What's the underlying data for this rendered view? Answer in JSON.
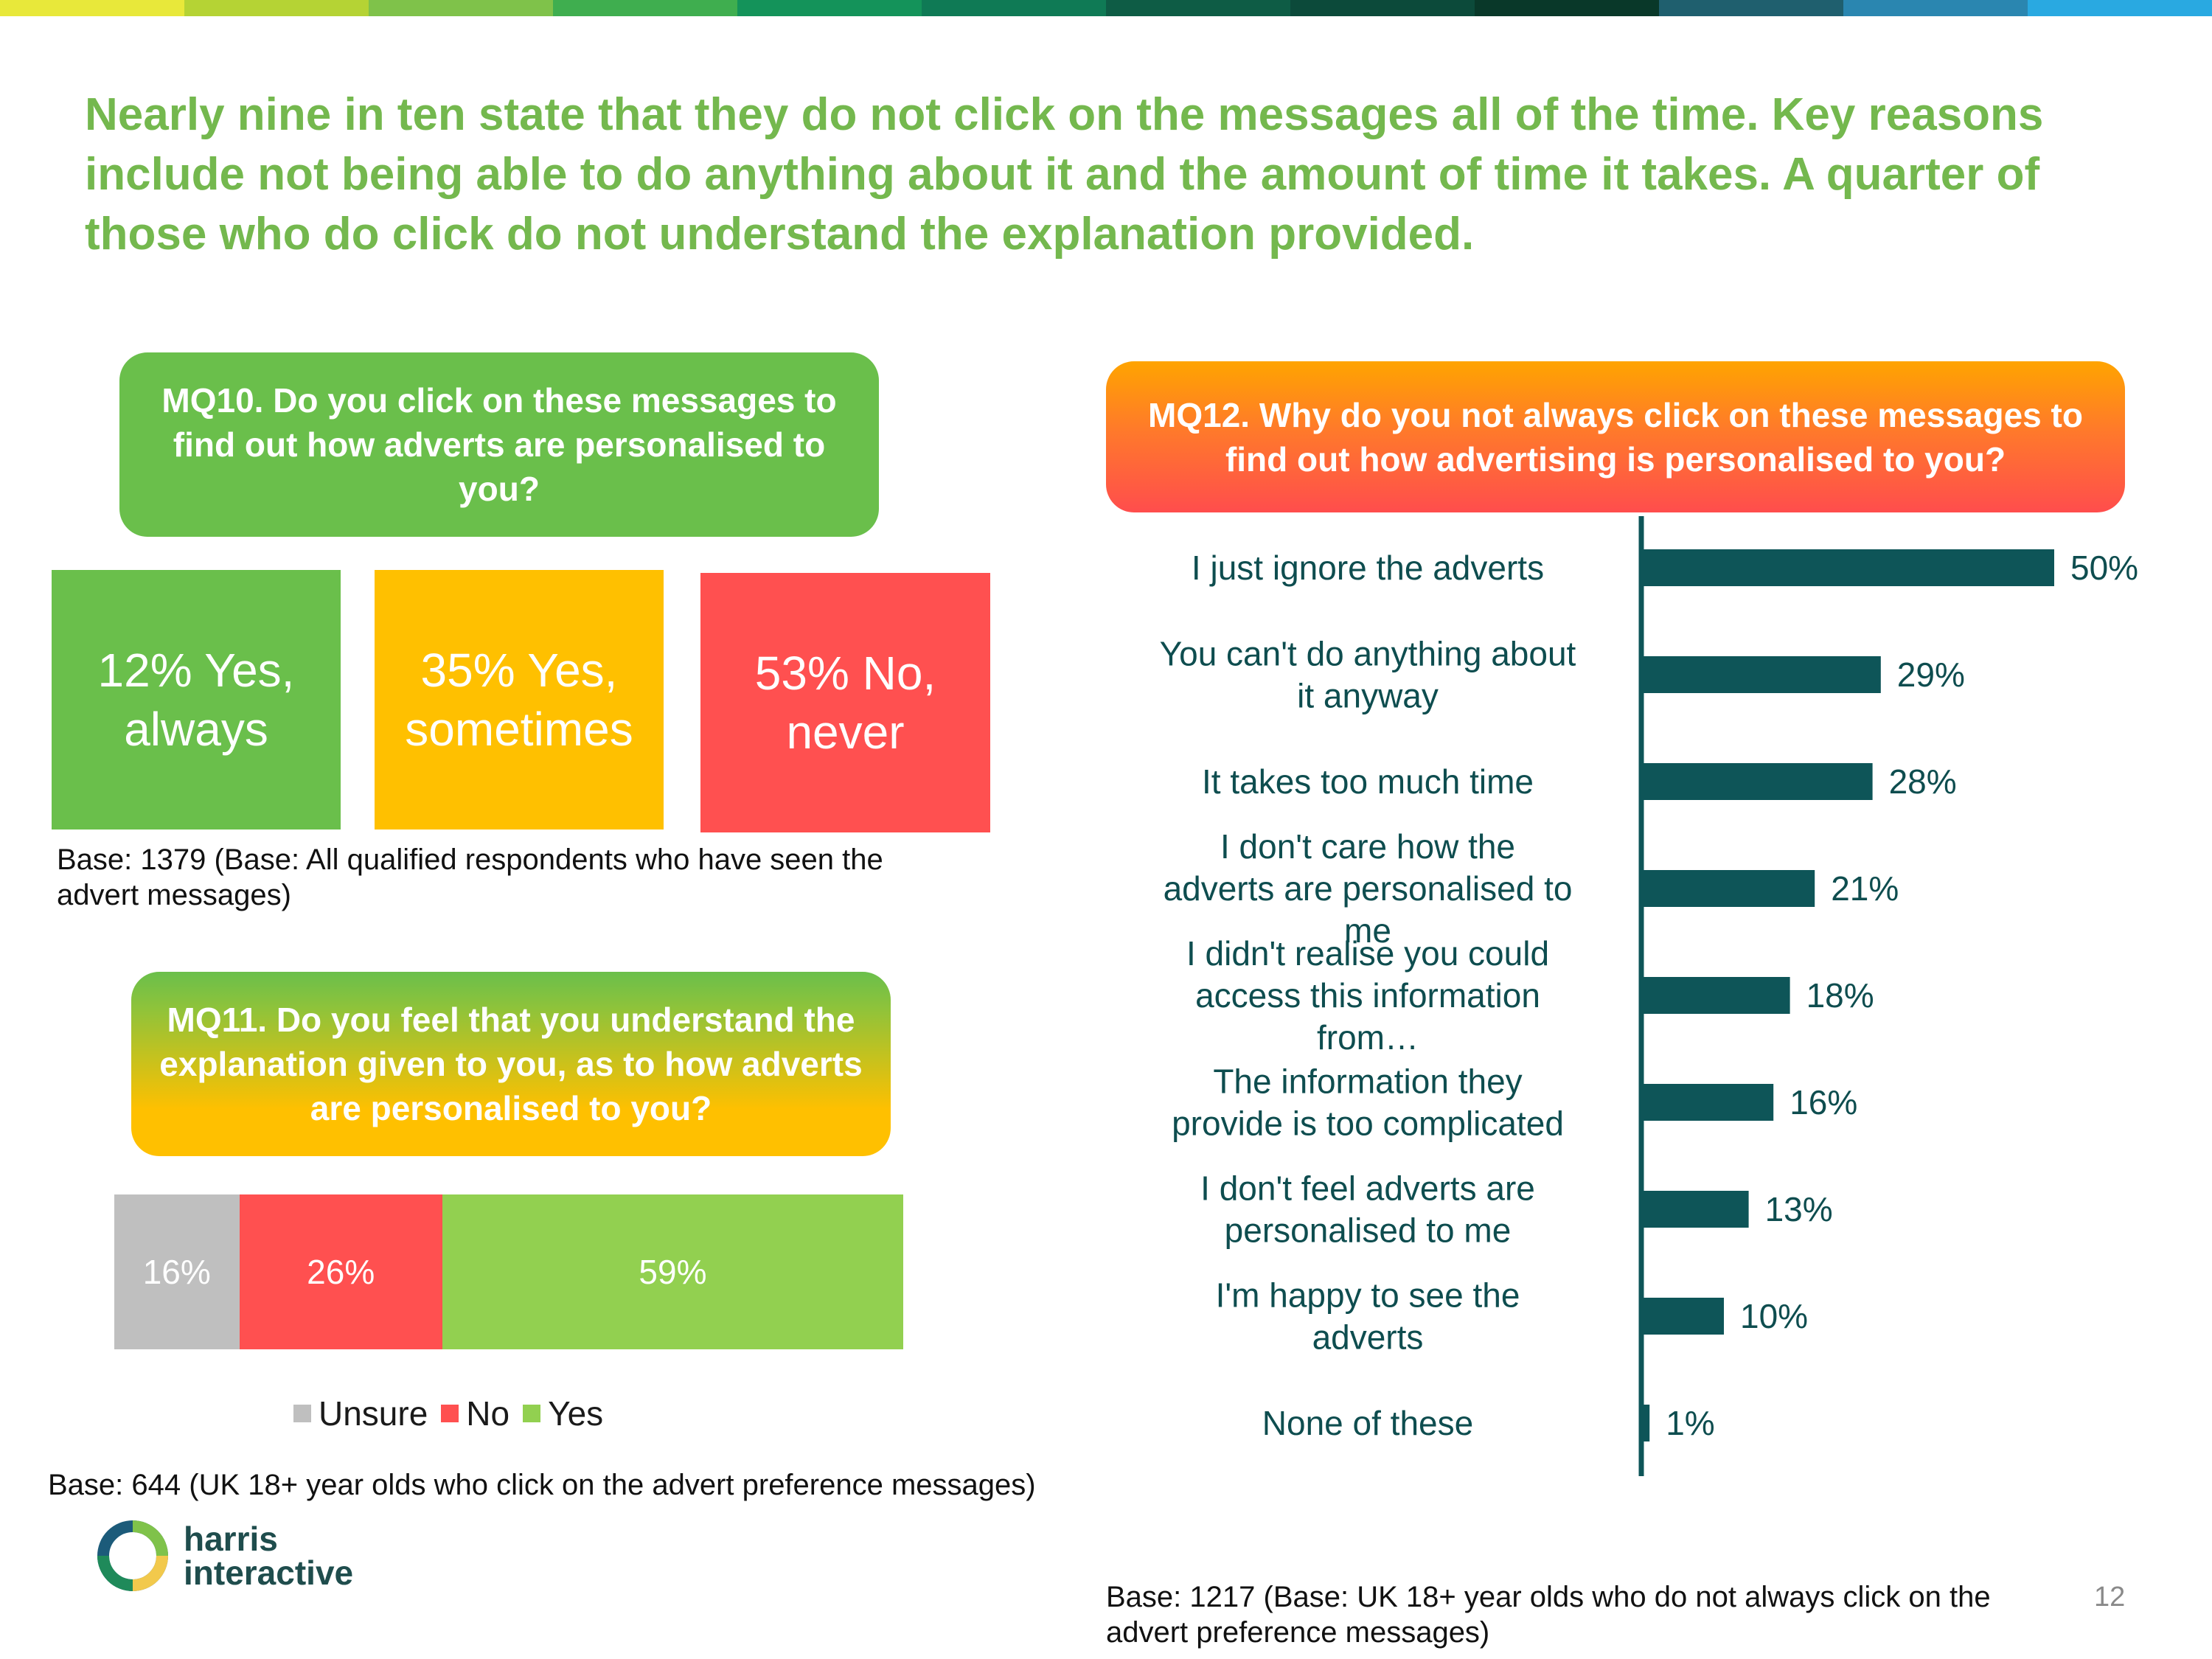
{
  "top_bar_colors": [
    "#e8e83a",
    "#b5d334",
    "#7fc24a",
    "#3fae4f",
    "#14935a",
    "#0f7a55",
    "#0e5c45",
    "#0c4a3a",
    "#093829",
    "#1f5f6e",
    "#2a86b0",
    "#29a9e1"
  ],
  "headline": "Nearly nine in ten state that they do not click on the messages all of the time. Key reasons include not being able to do anything about it and the amount of time it takes. A quarter of those who do click do not understand the explanation provided.",
  "mq10": {
    "question": "MQ10. Do you click on these messages to find out how adverts are personalised to you?",
    "tiles": [
      {
        "label": "12%  Yes, always",
        "color": "#6abf4b"
      },
      {
        "label": "35%  Yes, sometimes",
        "color": "#ffc000"
      },
      {
        "label": "53%  No, never",
        "color": "#ff5050"
      }
    ],
    "base": "Base: 1379 (Base: All qualified respondents who have seen the advert messages)"
  },
  "mq11": {
    "question": "MQ11. Do you feel that you understand the explanation given to you, as to how adverts are personalised to you?",
    "base": "Base: 644 (UK 18+ year olds who click on the advert preference messages)"
  },
  "mq12": {
    "question": "MQ12. Why do you not always click on these messages to find out how advertising is personalised to you?",
    "base": "Base: 1217 (Base: UK 18+ year olds who do not always click on the advert preference messages)"
  },
  "chart_data": [
    {
      "type": "bar",
      "orientation": "horizontal-stacked",
      "series": [
        {
          "name": "Unsure",
          "values": [
            16
          ],
          "labels": [
            "16%"
          ],
          "color": "#bfbfbf"
        },
        {
          "name": "No",
          "values": [
            26
          ],
          "labels": [
            "26%"
          ],
          "color": "#ff5050"
        },
        {
          "name": "Yes",
          "values": [
            59
          ],
          "labels": [
            "59%"
          ],
          "color": "#92d050"
        }
      ],
      "legend": "bottom"
    },
    {
      "type": "bar",
      "orientation": "horizontal",
      "categories": [
        "I just ignore the adverts",
        "You can't do anything about it anyway",
        "It takes too much time",
        "I don't care how the adverts are personalised to me",
        "I didn't realise you could access this information from…",
        "The information they provide is too complicated",
        "I don't feel adverts are personalised to me",
        "I'm happy to see the adverts",
        "None of these"
      ],
      "values": [
        50,
        29,
        28,
        21,
        18,
        16,
        13,
        10,
        1
      ],
      "labels": [
        "50%",
        "29%",
        "28%",
        "21%",
        "18%",
        "16%",
        "13%",
        "10%",
        "1%"
      ],
      "color": "#0e5558",
      "xlim": [
        0,
        50
      ]
    }
  ],
  "logo": {
    "line1": "harris",
    "line2": "interactive"
  },
  "page_number": "12"
}
